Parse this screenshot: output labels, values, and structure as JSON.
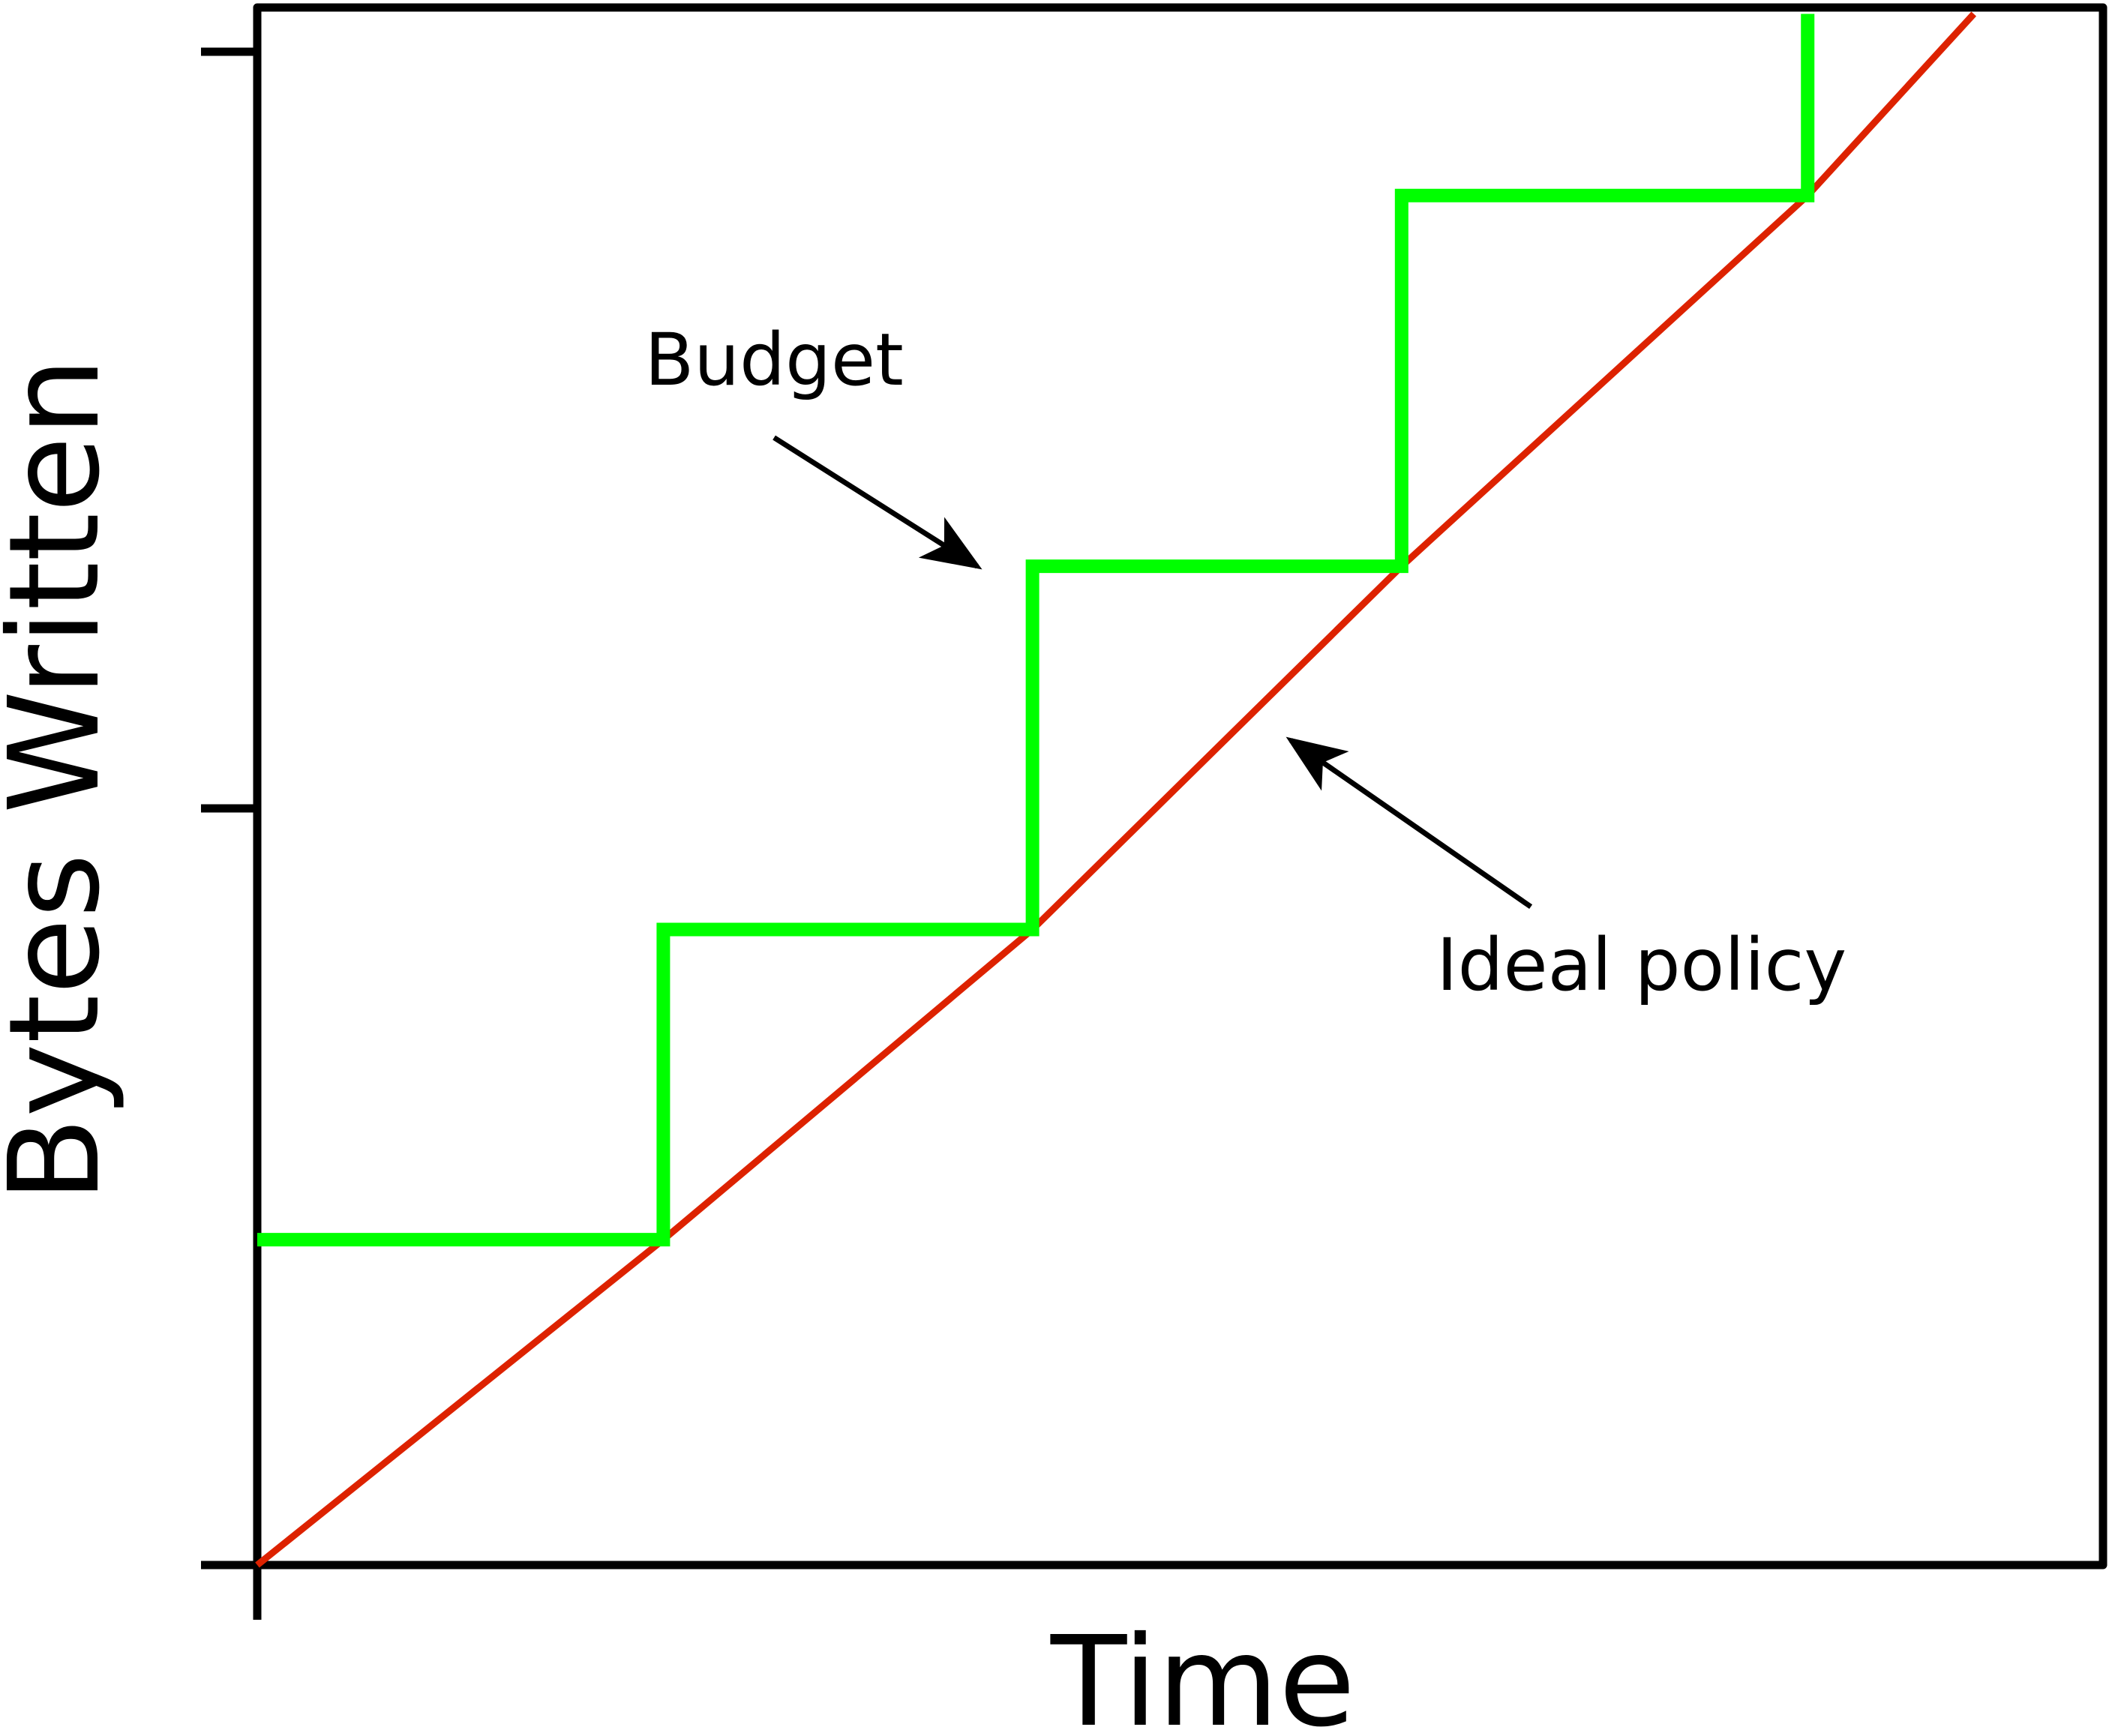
{
  "chart_data": {
    "type": "line",
    "title": "",
    "xlabel": "Time",
    "ylabel": "Bytes Written",
    "xlim": [
      0,
      1
    ],
    "ylim": [
      0,
      2
    ],
    "y_ticks": [
      0,
      1,
      2
    ],
    "x_ticks": [
      0
    ],
    "tick_labels_shown": false,
    "grid": false,
    "legend": "none",
    "series": [
      {
        "role": "budget",
        "color": "#00ff00",
        "style": "step",
        "points": [
          [
            0.0,
            0.43
          ],
          [
            0.22,
            0.43
          ],
          [
            0.22,
            0.84
          ],
          [
            0.42,
            0.84
          ],
          [
            0.42,
            1.32
          ],
          [
            0.62,
            1.32
          ],
          [
            0.62,
            1.81
          ],
          [
            0.84,
            1.81
          ],
          [
            0.84,
            2.05
          ]
        ]
      },
      {
        "role": "ideal",
        "color": "#dd2200",
        "style": "line",
        "points": [
          [
            0.0,
            0.0
          ],
          [
            0.22,
            0.43
          ],
          [
            0.42,
            0.84
          ],
          [
            0.62,
            1.32
          ],
          [
            0.84,
            1.81
          ],
          [
            0.93,
            2.05
          ]
        ]
      }
    ],
    "annotations": [
      {
        "id": "budget",
        "text": "Budget",
        "text_at": [
          0.28,
          1.56
        ],
        "arrow_from": [
          0.28,
          1.49
        ],
        "arrow_to": [
          0.39,
          1.32
        ]
      },
      {
        "id": "ideal",
        "text": "Ideal policy",
        "text_at": [
          0.75,
          0.76
        ],
        "arrow_from": [
          0.69,
          0.87
        ],
        "arrow_to": [
          0.56,
          1.09
        ]
      }
    ]
  }
}
